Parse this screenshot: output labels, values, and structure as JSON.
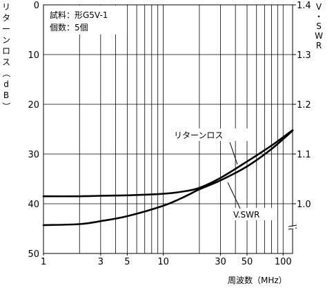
{
  "chart_data": {
    "type": "line",
    "x_scale": "log",
    "xlim": [
      1,
      120
    ],
    "x_ticks": [
      1,
      3,
      5,
      10,
      30,
      50,
      100
    ],
    "xlabel": "周波数（MHz）",
    "ylim_left": [
      0,
      50
    ],
    "y_ticks_left": [
      0,
      10,
      20,
      30,
      40,
      50
    ],
    "ylabel_left": "リターンロス（dB）",
    "y_left_inverted": true,
    "ylim_right": [
      1.0,
      1.4
    ],
    "y_ticks_right": [
      "1.0",
      "1.1",
      "1.2",
      "1.3",
      "1.4"
    ],
    "ylabel_right": "V・SWR",
    "grid": true,
    "annotation_box": [
      "試料：形G5V-1",
      "個数：5個"
    ],
    "series": [
      {
        "name": "リターンロス",
        "axis": "left",
        "x": [
          1,
          2,
          3,
          5,
          10,
          15,
          20,
          30,
          50,
          80,
          120
        ],
        "y": [
          38.5,
          38.5,
          38.4,
          38.3,
          38.0,
          37.5,
          36.8,
          34.8,
          31.5,
          28.3,
          25.2
        ]
      },
      {
        "name": "V.SWR",
        "axis": "left",
        "x": [
          1,
          2,
          3,
          5,
          10,
          15,
          20,
          30,
          50,
          80,
          120
        ],
        "y": [
          44.3,
          44.1,
          43.5,
          42.5,
          40.4,
          38.6,
          37.1,
          35.3,
          32.5,
          29.0,
          25.3
        ]
      }
    ],
    "series_labels": [
      "リターンロス",
      "V.SWR"
    ]
  }
}
